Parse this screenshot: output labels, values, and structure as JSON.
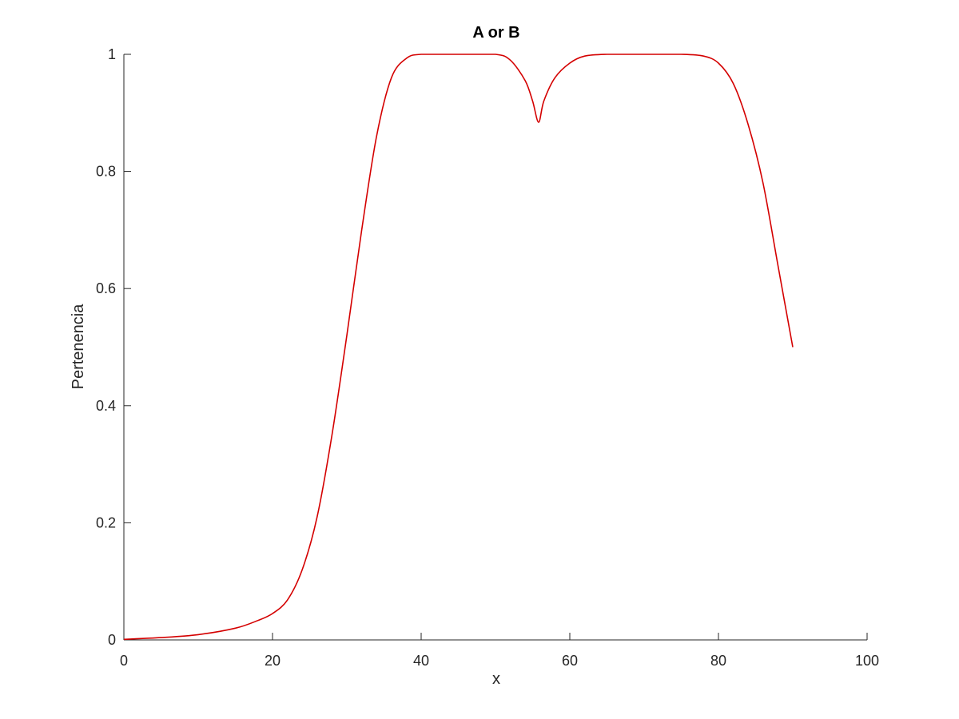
{
  "chart_data": {
    "type": "line",
    "title": "A or B",
    "xlabel": "x",
    "ylabel": "Pertenencia",
    "xlim": [
      0,
      100
    ],
    "ylim": [
      0,
      1
    ],
    "x_ticks": [
      0,
      20,
      40,
      60,
      80,
      100
    ],
    "x_tick_labels": [
      "0",
      "20",
      "40",
      "60",
      "80",
      "100"
    ],
    "y_ticks": [
      0,
      0.2,
      0.4,
      0.6,
      0.8,
      1
    ],
    "y_tick_labels": [
      "0",
      "0.2",
      "0.4",
      "0.6",
      "0.8",
      "1"
    ],
    "grid": false,
    "series": [
      {
        "color": "#d40000",
        "x": [
          0,
          5,
          10,
          15,
          18,
          20,
          22,
          24,
          26,
          28,
          30,
          32,
          34,
          36,
          38,
          40,
          45,
          50,
          52,
          54,
          55,
          55.8,
          56.5,
          58,
          60,
          62,
          65,
          70,
          75,
          78,
          80,
          82,
          84,
          86,
          88,
          90
        ],
        "values": [
          0.001,
          0.004,
          0.009,
          0.02,
          0.033,
          0.045,
          0.068,
          0.12,
          0.21,
          0.35,
          0.52,
          0.7,
          0.86,
          0.96,
          0.993,
          1.0,
          1.0,
          1.0,
          0.99,
          0.955,
          0.92,
          0.884,
          0.92,
          0.96,
          0.985,
          0.997,
          1.0,
          1.0,
          1.0,
          0.997,
          0.985,
          0.95,
          0.88,
          0.78,
          0.64,
          0.5
        ]
      }
    ]
  }
}
